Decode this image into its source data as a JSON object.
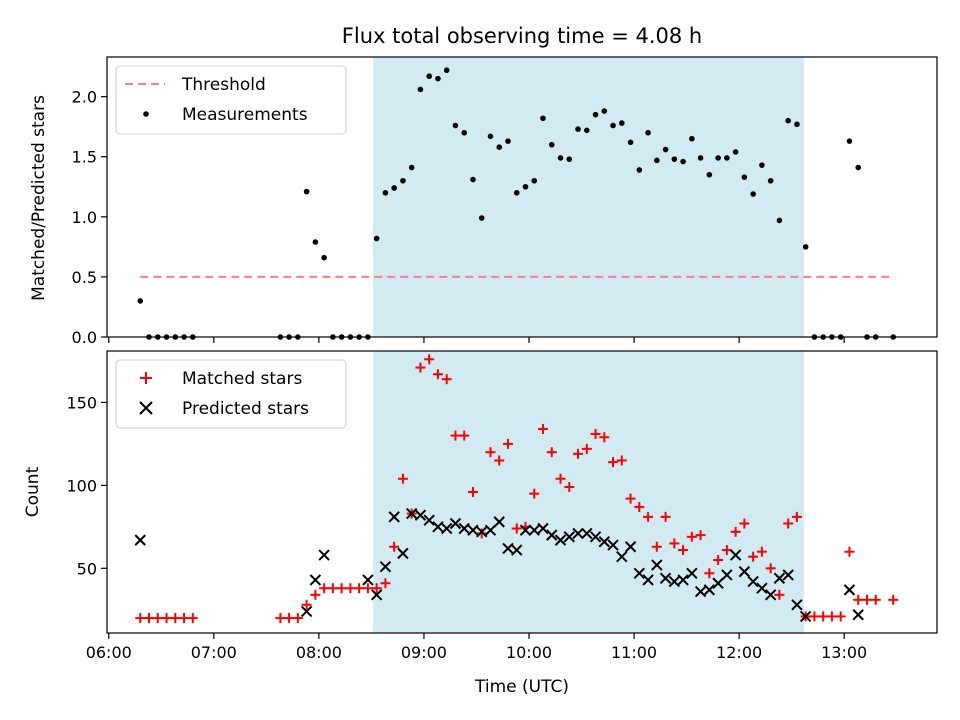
{
  "figure": {
    "title": "Flux total observing time = 4.08 h",
    "xlabel": "Time (UTC)",
    "xticks": [
      "06:00",
      "07:00",
      "08:00",
      "09:00",
      "10:00",
      "11:00",
      "12:00",
      "13:00"
    ]
  },
  "chart_data": [
    {
      "type": "scatter",
      "ylabel": "Matched/Predicted stars",
      "ylim": [
        0,
        2.33
      ],
      "yticks": [
        "0.0",
        "0.5",
        "1.0",
        "1.5",
        "2.0"
      ],
      "xlim": [
        "05:59",
        "13:53"
      ],
      "shaded_interval": [
        "08:31",
        "12:37"
      ],
      "shade_color": "#add8e6",
      "legend": {
        "position": "top-left",
        "entries": [
          "Threshold",
          "Measurements"
        ]
      },
      "series": [
        {
          "name": "Threshold",
          "style": "dashed-line",
          "color": "#ff7f7f",
          "x": [
            "06:18",
            "13:28"
          ],
          "y": [
            0.5,
            0.5
          ]
        },
        {
          "name": "Measurements",
          "style": "dot",
          "color": "#000000",
          "x": [
            "06:18",
            "06:23",
            "06:28",
            "06:33",
            "06:38",
            "06:43",
            "06:48",
            "07:38",
            "07:43",
            "07:48",
            "07:53",
            "07:58",
            "08:03",
            "08:08",
            "08:13",
            "08:18",
            "08:23",
            "08:28",
            "08:33",
            "08:38",
            "08:43",
            "08:48",
            "08:53",
            "08:58",
            "09:03",
            "09:08",
            "09:13",
            "09:18",
            "09:23",
            "09:28",
            "09:33",
            "09:38",
            "09:43",
            "09:48",
            "09:53",
            "09:58",
            "10:03",
            "10:08",
            "10:13",
            "10:18",
            "10:23",
            "10:28",
            "10:33",
            "10:38",
            "10:43",
            "10:48",
            "10:53",
            "10:58",
            "11:03",
            "11:08",
            "11:13",
            "11:18",
            "11:23",
            "11:28",
            "11:33",
            "11:38",
            "11:43",
            "11:48",
            "11:53",
            "11:58",
            "12:03",
            "12:08",
            "12:13",
            "12:18",
            "12:23",
            "12:28",
            "12:33",
            "12:38",
            "12:43",
            "12:48",
            "12:53",
            "12:58",
            "13:03",
            "13:08",
            "13:13",
            "13:18",
            "13:28"
          ],
          "y": [
            0.3,
            0,
            0,
            0,
            0,
            0,
            0,
            0,
            0,
            0,
            1.21,
            0.79,
            0.66,
            0,
            0,
            0,
            0,
            0,
            0.82,
            1.2,
            1.24,
            1.3,
            1.41,
            2.06,
            2.17,
            2.15,
            2.22,
            1.76,
            1.7,
            1.31,
            0.99,
            1.67,
            1.58,
            1.63,
            1.2,
            1.25,
            1.3,
            1.82,
            1.6,
            1.49,
            1.48,
            1.73,
            1.72,
            1.85,
            1.88,
            1.76,
            1.78,
            1.62,
            1.39,
            1.7,
            1.47,
            1.56,
            1.48,
            1.46,
            1.65,
            1.49,
            1.35,
            1.49,
            1.49,
            1.54,
            1.33,
            1.19,
            1.43,
            1.3,
            0.97,
            1.8,
            1.77,
            0.75,
            0,
            0,
            0,
            0,
            1.63,
            1.41,
            0,
            0,
            0
          ]
        }
      ]
    },
    {
      "type": "scatter",
      "ylabel": "Count",
      "ylim": [
        11,
        181
      ],
      "yticks": [
        "50",
        "100",
        "150"
      ],
      "xlim": [
        "05:59",
        "13:53"
      ],
      "shaded_interval": [
        "08:31",
        "12:37"
      ],
      "shade_color": "#add8e6",
      "legend": {
        "position": "top-left",
        "entries": [
          "Matched stars",
          "Predicted stars"
        ]
      },
      "series": [
        {
          "name": "Matched stars",
          "marker": "plus",
          "color": "#ff0000",
          "x": [
            "06:18",
            "06:23",
            "06:28",
            "06:33",
            "06:38",
            "06:43",
            "06:48",
            "07:38",
            "07:43",
            "07:48",
            "07:53",
            "07:58",
            "08:03",
            "08:08",
            "08:13",
            "08:18",
            "08:23",
            "08:28",
            "08:33",
            "08:38",
            "08:43",
            "08:48",
            "08:53",
            "08:58",
            "09:03",
            "09:08",
            "09:13",
            "09:18",
            "09:23",
            "09:28",
            "09:33",
            "09:38",
            "09:43",
            "09:48",
            "09:53",
            "09:58",
            "10:03",
            "10:08",
            "10:13",
            "10:18",
            "10:23",
            "10:28",
            "10:33",
            "10:38",
            "10:43",
            "10:48",
            "10:53",
            "10:58",
            "11:03",
            "11:08",
            "11:13",
            "11:18",
            "11:23",
            "11:28",
            "11:33",
            "11:38",
            "11:43",
            "11:48",
            "11:53",
            "11:58",
            "12:03",
            "12:08",
            "12:13",
            "12:18",
            "12:23",
            "12:28",
            "12:33",
            "12:38",
            "12:43",
            "12:48",
            "12:53",
            "12:58",
            "13:03",
            "13:08",
            "13:13",
            "13:18",
            "13:28"
          ],
          "y": [
            20,
            20,
            20,
            20,
            20,
            20,
            20,
            20,
            20,
            20,
            28,
            34,
            38,
            38,
            38,
            38,
            38,
            38,
            38,
            41,
            63,
            104,
            83,
            171,
            176,
            167,
            164,
            130,
            130,
            96,
            71,
            120,
            115,
            125,
            74,
            75,
            95,
            134,
            120,
            104,
            99,
            119,
            122,
            131,
            129,
            114,
            115,
            92,
            87,
            81,
            63,
            81,
            65,
            61,
            69,
            70,
            47,
            55,
            61,
            72,
            77,
            57,
            60,
            50,
            34,
            77,
            81,
            21,
            21,
            21,
            21,
            21,
            60,
            31,
            31,
            31,
            31
          ]
        },
        {
          "name": "Predicted stars",
          "marker": "x",
          "color": "#000000",
          "x": [
            "06:18",
            "07:53",
            "07:58",
            "08:03",
            "08:28",
            "08:33",
            "08:38",
            "08:43",
            "08:48",
            "08:53",
            "08:58",
            "09:03",
            "09:08",
            "09:13",
            "09:18",
            "09:23",
            "09:28",
            "09:33",
            "09:38",
            "09:43",
            "09:48",
            "09:53",
            "09:58",
            "10:03",
            "10:08",
            "10:13",
            "10:18",
            "10:23",
            "10:28",
            "10:33",
            "10:38",
            "10:43",
            "10:48",
            "10:53",
            "10:58",
            "11:03",
            "11:08",
            "11:13",
            "11:18",
            "11:23",
            "11:28",
            "11:33",
            "11:38",
            "11:43",
            "11:48",
            "11:53",
            "11:58",
            "12:03",
            "12:08",
            "12:13",
            "12:18",
            "12:23",
            "12:28",
            "12:33",
            "12:38",
            "13:03",
            "13:08"
          ],
          "y": [
            67,
            24,
            43,
            58,
            43,
            34,
            51,
            81,
            59,
            83,
            82,
            79,
            75,
            74,
            77,
            74,
            73,
            72,
            73,
            78,
            62,
            61,
            73,
            73,
            74,
            70,
            67,
            69,
            71,
            71,
            69,
            66,
            64,
            57,
            63,
            47,
            43,
            52,
            44,
            42,
            43,
            47,
            36,
            37,
            41,
            46,
            58,
            48,
            42,
            38,
            34,
            44,
            46,
            28,
            21,
            37,
            22
          ]
        }
      ]
    }
  ]
}
